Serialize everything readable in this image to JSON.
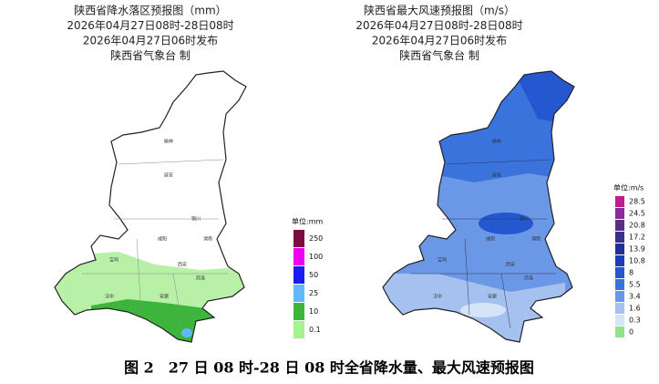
{
  "left": {
    "title": [
      "陕西省降水落区预报图（mm）",
      "2026年04月27日08时-28日08时",
      "2026年04月27日06时发布",
      "陕西省气象台 制"
    ],
    "unit": "单位:mm",
    "legend": [
      {
        "label": 250,
        "color": "#7b0c3d"
      },
      {
        "label": 100,
        "color": "#f000f0"
      },
      {
        "label": 50,
        "color": "#1b1bf5"
      },
      {
        "label": 25,
        "color": "#62b8ff"
      },
      {
        "label": 10,
        "color": "#3db53d"
      },
      {
        "label": 0.1,
        "color": "#a6f28f"
      }
    ],
    "cities": [
      "榆林",
      "延安",
      "铜川",
      "渭南",
      "咸阳",
      "西安",
      "宝鸡",
      "汉中",
      "安康",
      "商洛"
    ]
  },
  "right": {
    "title": [
      "陕西省最大风速预报图（m/s）",
      "2026年04月27日08时-28日08时",
      "2026年04月27日06时发布",
      "陕西省气象台 制"
    ],
    "unit": "单位:m/s",
    "legend": [
      {
        "label": 28.5,
        "color": "#c21b8f"
      },
      {
        "label": 24.5,
        "color": "#8c2a9a"
      },
      {
        "label": 20.8,
        "color": "#5a2d8a"
      },
      {
        "label": 17.2,
        "color": "#3a2f8a"
      },
      {
        "label": 13.9,
        "color": "#232f96"
      },
      {
        "label": 10.8,
        "color": "#1c3fb8"
      },
      {
        "label": 8,
        "color": "#2457d0"
      },
      {
        "label": 5.5,
        "color": "#3a73dc"
      },
      {
        "label": 3.4,
        "color": "#6a97e6"
      },
      {
        "label": 1.6,
        "color": "#a5c1ef"
      },
      {
        "label": 0.3,
        "color": "#d6e4f7"
      },
      {
        "label": 0,
        "color": "#8fe38f"
      }
    ],
    "cities": [
      "榆林",
      "延安",
      "铜川",
      "渭南",
      "咸阳",
      "西安",
      "宝鸡",
      "汉中",
      "安康",
      "商洛"
    ]
  },
  "caption": "图 2　27 日 08 时-28 日 08 时全省降水量、最大风速预报图"
}
